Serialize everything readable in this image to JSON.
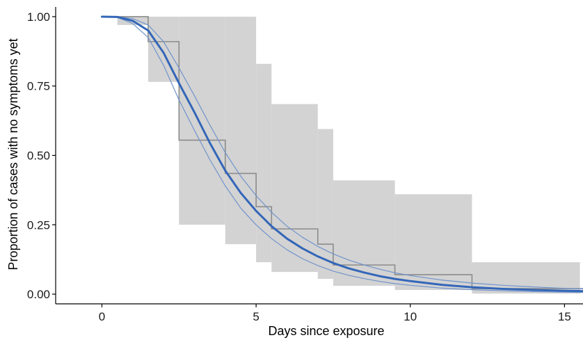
{
  "chart_data": {
    "type": "line",
    "xlabel": "Days since exposure",
    "ylabel": "Proportion of cases with no symptoms yet",
    "xlim": [
      -1.5,
      15.6
    ],
    "ylim": [
      -0.035,
      1.035
    ],
    "x_ticks": [
      0,
      5,
      10,
      15
    ],
    "x_tick_labels": [
      "0",
      "5",
      "10",
      "15"
    ],
    "y_ticks": [
      0,
      0.25,
      0.5,
      0.75,
      1
    ],
    "y_tick_labels": [
      "0.00",
      "0.25",
      "0.50",
      "0.75",
      "1.00"
    ],
    "grid": false,
    "legend": "none",
    "colors": {
      "fit": "#3366b8",
      "fit_ci": "#6f93cc",
      "km_step": "#8c8c8c",
      "ci_band": "#d3d3d3"
    },
    "fit": {
      "name": "",
      "x": [
        0,
        0.5,
        1,
        1.5,
        2,
        2.5,
        3,
        3.5,
        4,
        4.5,
        5,
        5.5,
        6,
        6.5,
        7,
        7.5,
        8,
        8.5,
        9,
        9.5,
        10,
        11,
        12,
        13,
        14,
        15,
        15.6
      ],
      "y": [
        1.0,
        0.999,
        0.985,
        0.95,
        0.87,
        0.76,
        0.655,
        0.545,
        0.445,
        0.365,
        0.3,
        0.245,
        0.2,
        0.165,
        0.136,
        0.112,
        0.093,
        0.078,
        0.065,
        0.055,
        0.047,
        0.034,
        0.025,
        0.019,
        0.015,
        0.012,
        0.011
      ]
    },
    "fit_lower": {
      "x": [
        0,
        0.5,
        1,
        1.5,
        2,
        2.5,
        3,
        3.5,
        4,
        4.5,
        5,
        5.5,
        6,
        6.5,
        7,
        7.5,
        8,
        8.5,
        9,
        9.5,
        10,
        11,
        12,
        13,
        14,
        15,
        15.6
      ],
      "y": [
        1.0,
        0.998,
        0.975,
        0.925,
        0.825,
        0.7,
        0.59,
        0.485,
        0.39,
        0.31,
        0.25,
        0.2,
        0.16,
        0.128,
        0.103,
        0.083,
        0.068,
        0.056,
        0.046,
        0.038,
        0.032,
        0.022,
        0.016,
        0.012,
        0.009,
        0.007,
        0.006
      ]
    },
    "fit_upper": {
      "x": [
        0,
        0.5,
        1,
        1.5,
        2,
        2.5,
        3,
        3.5,
        4,
        4.5,
        5,
        5.5,
        6,
        6.5,
        7,
        7.5,
        8,
        8.5,
        9,
        9.5,
        10,
        11,
        12,
        13,
        14,
        15,
        15.6
      ],
      "y": [
        1.0,
        1.0,
        0.993,
        0.97,
        0.91,
        0.815,
        0.715,
        0.61,
        0.51,
        0.425,
        0.355,
        0.295,
        0.245,
        0.205,
        0.172,
        0.145,
        0.123,
        0.105,
        0.09,
        0.077,
        0.067,
        0.051,
        0.04,
        0.032,
        0.026,
        0.021,
        0.019
      ]
    },
    "km_steps": {
      "x": [
        0.5,
        1.5,
        2.5,
        4,
        5,
        5.5,
        7,
        7.5,
        9.5,
        12,
        15.6
      ],
      "y": [
        1.0,
        0.91,
        0.555,
        0.435,
        0.315,
        0.235,
        0.18,
        0.105,
        0.07,
        0.02,
        0.02
      ]
    },
    "ci_band": [
      {
        "x0": 0.5,
        "x1": 1.5,
        "lower": 0.97,
        "upper": 1.0
      },
      {
        "x0": 1.5,
        "x1": 2.5,
        "lower": 0.765,
        "upper": 1.0
      },
      {
        "x0": 2.5,
        "x1": 4,
        "lower": 0.25,
        "upper": 1.0
      },
      {
        "x0": 4,
        "x1": 5,
        "lower": 0.18,
        "upper": 1.0
      },
      {
        "x0": 5,
        "x1": 5.5,
        "lower": 0.115,
        "upper": 0.83
      },
      {
        "x0": 5.5,
        "x1": 7,
        "lower": 0.08,
        "upper": 0.685
      },
      {
        "x0": 7,
        "x1": 7.5,
        "lower": 0.055,
        "upper": 0.595
      },
      {
        "x0": 7.5,
        "x1": 9.5,
        "lower": 0.03,
        "upper": 0.41
      },
      {
        "x0": 9.5,
        "x1": 12,
        "lower": 0.015,
        "upper": 0.36
      },
      {
        "x0": 12,
        "x1": 15.5,
        "lower": 0.002,
        "upper": 0.115
      }
    ]
  }
}
